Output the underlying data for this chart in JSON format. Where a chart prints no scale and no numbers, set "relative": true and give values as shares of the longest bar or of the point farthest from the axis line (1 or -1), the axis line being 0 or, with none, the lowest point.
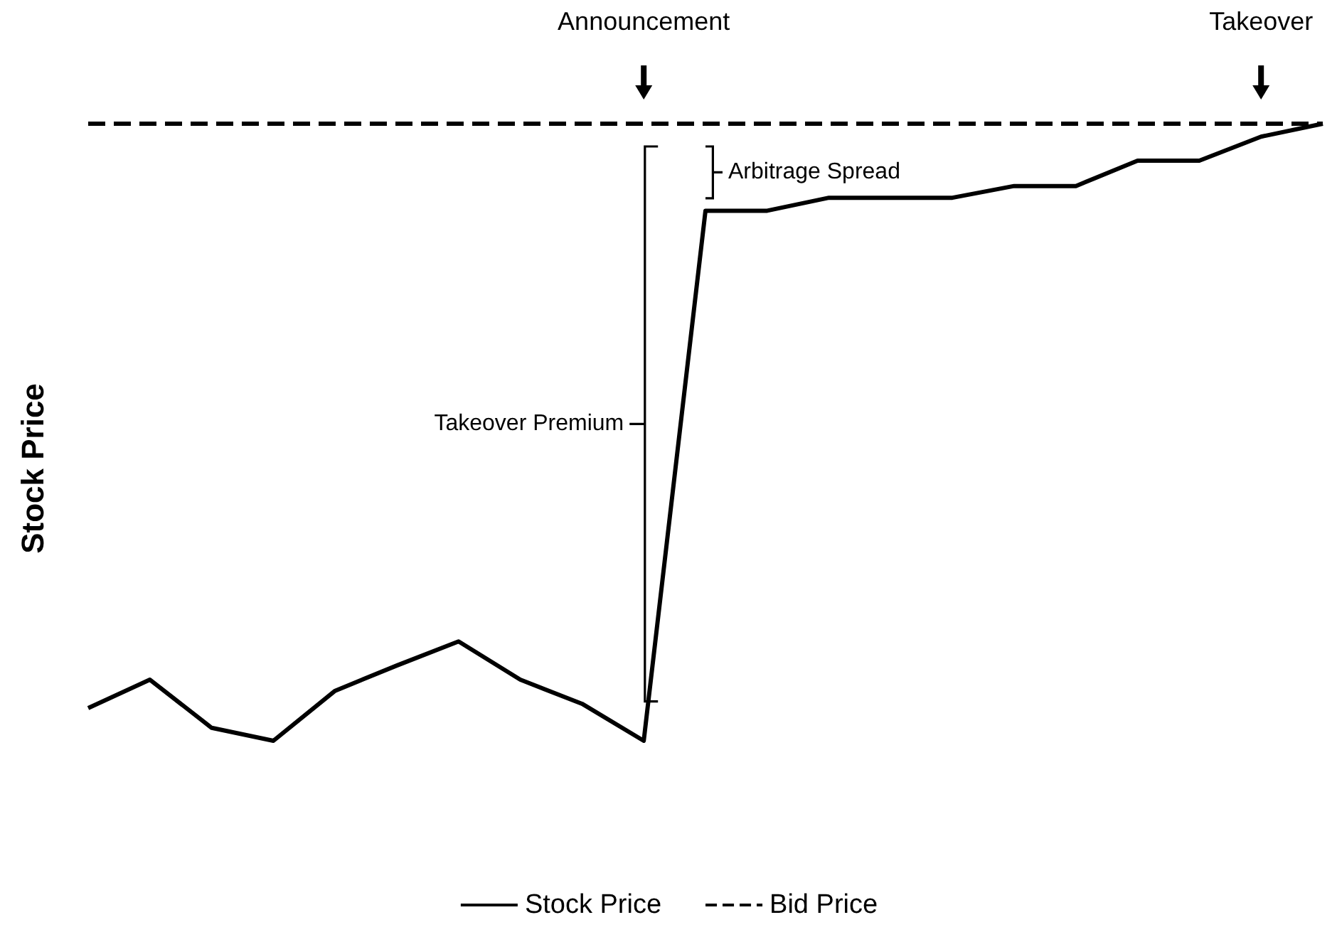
{
  "chart_data": {
    "type": "line",
    "relative": true,
    "ylabel": "Stock Price",
    "categories": [
      null,
      null,
      null,
      null,
      null,
      null,
      null,
      null,
      null,
      null,
      null,
      null,
      null,
      null,
      null,
      null,
      null,
      null,
      null,
      null,
      null
    ],
    "series": [
      {
        "name": "Stock Price",
        "color": "#000000",
        "line_style": "solid",
        "values": [
          0.053,
          0.099,
          0.021,
          0,
          0.081,
          0.122,
          0.161,
          0.099,
          0.06,
          0,
          0.859,
          0.859,
          0.88,
          0.88,
          0.88,
          0.899,
          0.899,
          0.94,
          0.94,
          0.979,
          1
        ]
      },
      {
        "name": "Bid Price",
        "color": "#000000",
        "line_style": "dashed",
        "values": [
          1,
          1,
          1,
          1,
          1,
          1,
          1,
          1,
          1,
          1,
          1,
          1,
          1,
          1,
          1,
          1,
          1,
          1,
          1,
          1,
          1
        ]
      }
    ],
    "annotations": [
      "Announcement",
      "Takeover",
      "Arbitrage Spread",
      "Takeover Premium"
    ],
    "legend": "bottom",
    "grid": false,
    "marker": "none"
  }
}
